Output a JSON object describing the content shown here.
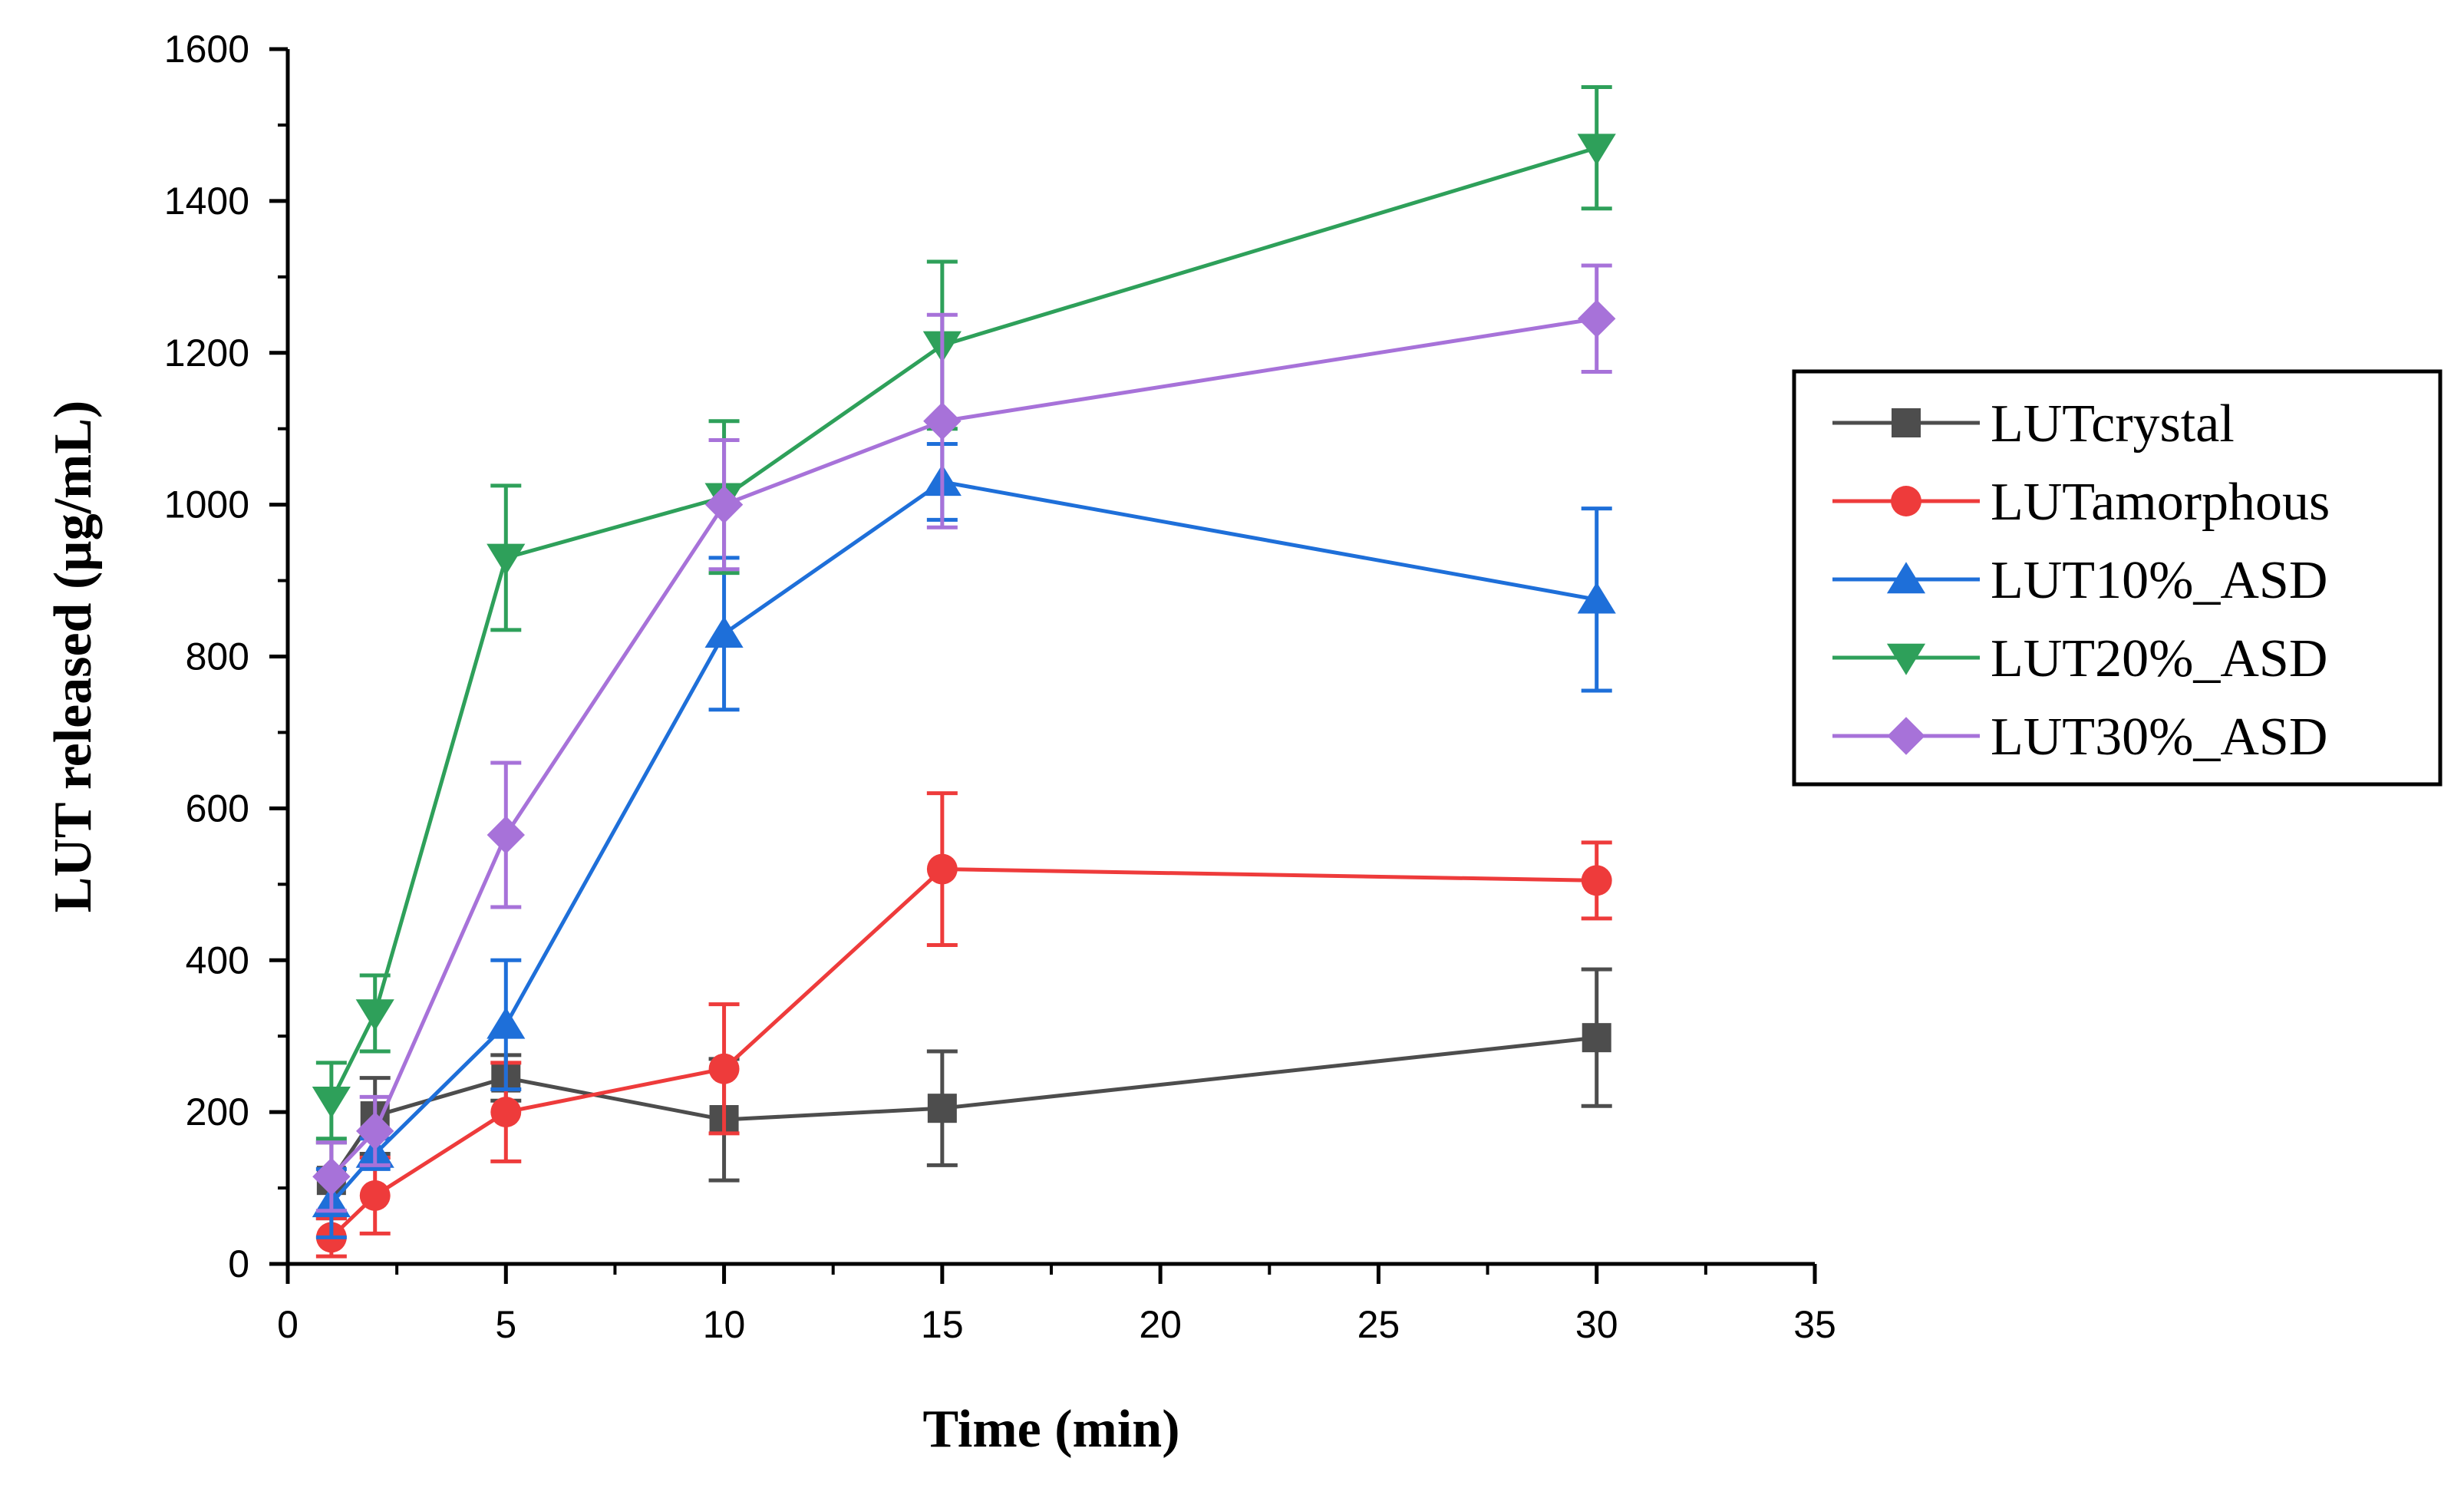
{
  "chart_data": {
    "type": "line",
    "title": "",
    "xlabel": "Time (min)",
    "ylabel": "LUT released (µg/mL)",
    "xlim": [
      0,
      35
    ],
    "ylim": [
      0,
      1600
    ],
    "xticks": [
      0,
      5,
      10,
      15,
      20,
      25,
      30,
      35
    ],
    "yticks": [
      0,
      200,
      400,
      600,
      800,
      1000,
      1200,
      1400,
      1600
    ],
    "grid": false,
    "legend_position": "right",
    "x": [
      1,
      2,
      5,
      10,
      15,
      30
    ],
    "series": [
      {
        "name": "LUTcrystal",
        "color": "#4d4d4d",
        "marker": "square",
        "values": [
          110,
          195,
          245,
          190,
          205,
          298
        ],
        "errors": [
          50,
          50,
          30,
          80,
          75,
          90
        ]
      },
      {
        "name": "LUTamorphous",
        "color": "#ee3b3b",
        "marker": "circle",
        "values": [
          35,
          90,
          200,
          257,
          520,
          505
        ],
        "errors": [
          25,
          50,
          65,
          85,
          100,
          50
        ]
      },
      {
        "name": "LUT10%_ASD",
        "color": "#1e6fd9",
        "marker": "triangle-up",
        "values": [
          80,
          145,
          315,
          830,
          1030,
          875
        ],
        "errors": [
          45,
          20,
          85,
          100,
          50,
          120
        ]
      },
      {
        "name": "LUT20%_ASD",
        "color": "#2ea05a",
        "marker": "triangle-down",
        "values": [
          215,
          330,
          930,
          1010,
          1210,
          1470
        ],
        "errors": [
          50,
          50,
          95,
          100,
          110,
          80
        ]
      },
      {
        "name": "LUT30%_ASD",
        "color": "#a772d9",
        "marker": "diamond",
        "values": [
          115,
          175,
          565,
          1000,
          1110,
          1245
        ],
        "errors": [
          45,
          45,
          95,
          85,
          140,
          70
        ]
      }
    ]
  }
}
